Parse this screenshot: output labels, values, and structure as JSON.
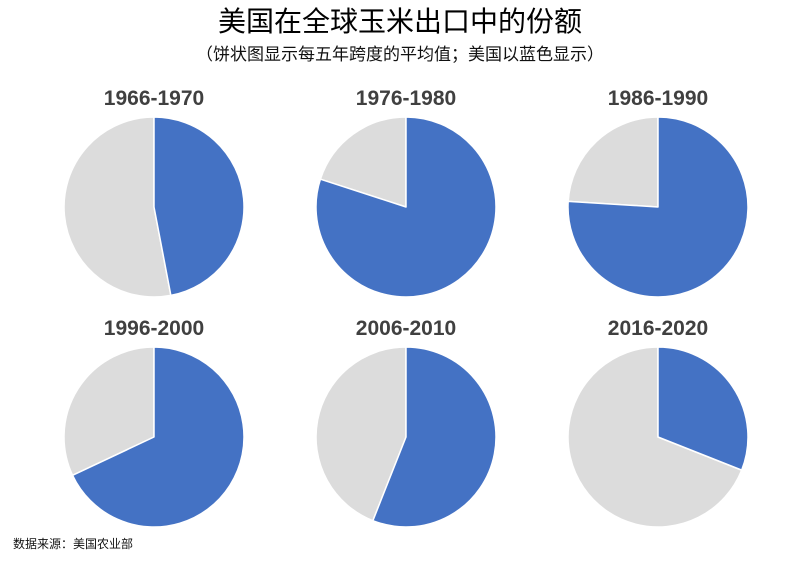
{
  "header": {
    "title": "美国在全球玉米出口中的份额",
    "subtitle": "（饼状图显示每五年跨度的平均值；美国以蓝色显示）"
  },
  "footer": {
    "source": "数据来源：美国农业部"
  },
  "colors": {
    "us": "#4472C4",
    "rest": "#DCDCDC",
    "edge": "#FFFFFF"
  },
  "chart_data": [
    {
      "type": "pie",
      "title": "1966-1970",
      "values": [
        0.47,
        0.53
      ]
    },
    {
      "type": "pie",
      "title": "1976-1980",
      "values": [
        0.8,
        0.2
      ]
    },
    {
      "type": "pie",
      "title": "1986-1990",
      "values": [
        0.76,
        0.24
      ]
    },
    {
      "type": "pie",
      "title": "1996-2000",
      "values": [
        0.68,
        0.32
      ]
    },
    {
      "type": "pie",
      "title": "2006-2010",
      "values": [
        0.56,
        0.44
      ]
    },
    {
      "type": "pie",
      "title": "2016-2020",
      "values": [
        0.31,
        0.69
      ]
    }
  ]
}
